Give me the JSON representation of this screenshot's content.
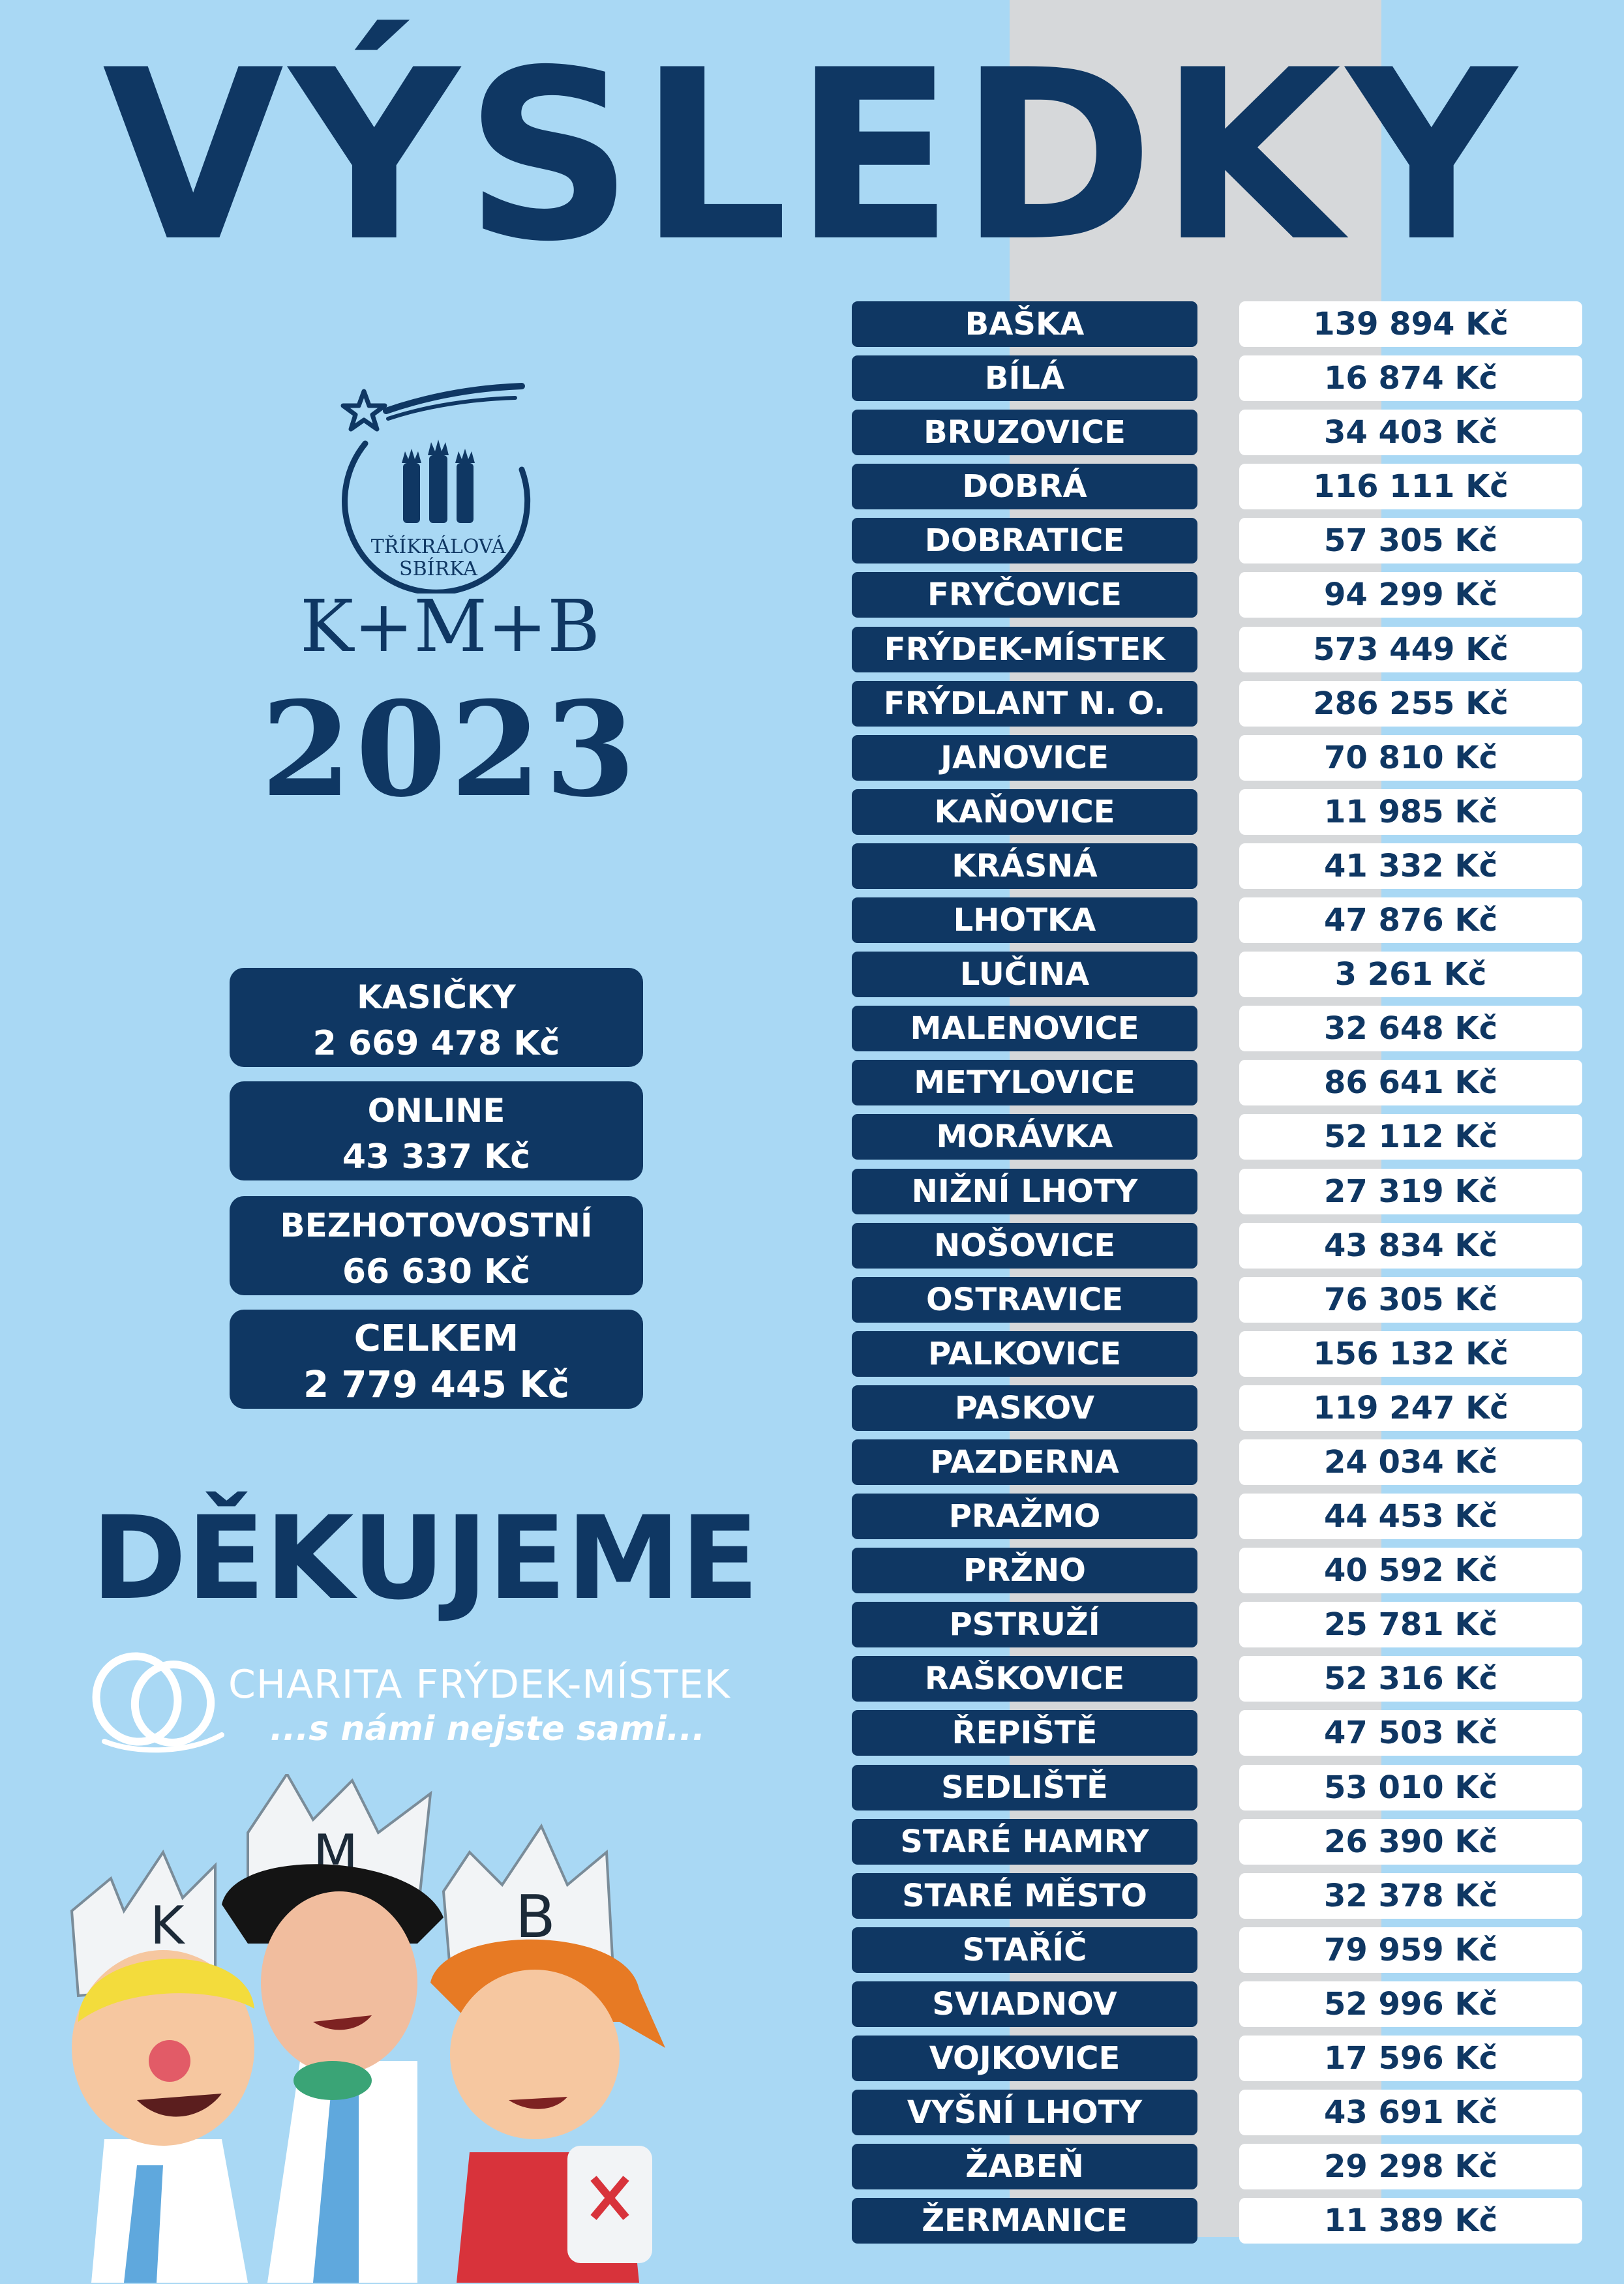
{
  "title": "VÝSLEDKY",
  "logo": {
    "text_line1": "TŘÍKRÁLOVÁ",
    "text_line2": "SBÍRKA",
    "kmb": "K+M+B",
    "year": "2023"
  },
  "summary": [
    {
      "label": "KASIČKY",
      "value": "2 669 478 Kč"
    },
    {
      "label": "ONLINE",
      "value": "43 337 Kč"
    },
    {
      "label": "BEZHOTOVOSTNÍ",
      "value": "66 630 Kč"
    },
    {
      "label": "CELKEM",
      "value": "2 779 445 Kč"
    }
  ],
  "thanks": "DĚKUJEME",
  "charity": {
    "name": "CHARITA FRÝDEK-MÍSTEK",
    "slogan": "...s námi nejste sami..."
  },
  "crown_letters": [
    "K",
    "M",
    "B"
  ],
  "results": [
    {
      "name": "BAŠKA",
      "amount": "139 894 Kč"
    },
    {
      "name": "BÍLÁ",
      "amount": "16 874 Kč"
    },
    {
      "name": "BRUZOVICE",
      "amount": "34 403 Kč"
    },
    {
      "name": "DOBRÁ",
      "amount": "116 111 Kč"
    },
    {
      "name": "DOBRATICE",
      "amount": "57 305 Kč"
    },
    {
      "name": "FRYČOVICE",
      "amount": "94 299 Kč"
    },
    {
      "name": "FRÝDEK-MÍSTEK",
      "amount": "573 449 Kč"
    },
    {
      "name": "FRÝDLANT N. O.",
      "amount": "286 255 Kč"
    },
    {
      "name": "JANOVICE",
      "amount": "70 810 Kč"
    },
    {
      "name": "KAŇOVICE",
      "amount": "11 985 Kč"
    },
    {
      "name": "KRÁSNÁ",
      "amount": "41 332 Kč"
    },
    {
      "name": "LHOTKA",
      "amount": "47 876 Kč"
    },
    {
      "name": "LUČINA",
      "amount": "3 261 Kč"
    },
    {
      "name": "MALENOVICE",
      "amount": "32 648 Kč"
    },
    {
      "name": "METYLOVICE",
      "amount": "86 641 Kč"
    },
    {
      "name": "MORÁVKA",
      "amount": "52 112 Kč"
    },
    {
      "name": "NIŽNÍ LHOTY",
      "amount": "27 319 Kč"
    },
    {
      "name": "NOŠOVICE",
      "amount": "43 834 Kč"
    },
    {
      "name": "OSTRAVICE",
      "amount": "76 305 Kč"
    },
    {
      "name": "PALKOVICE",
      "amount": "156 132 Kč"
    },
    {
      "name": "PASKOV",
      "amount": "119 247 Kč"
    },
    {
      "name": "PAZDERNA",
      "amount": "24 034 Kč"
    },
    {
      "name": "PRAŽMO",
      "amount": "44 453 Kč"
    },
    {
      "name": "PRŽNO",
      "amount": "40 592 Kč"
    },
    {
      "name": "PSTRUŽÍ",
      "amount": "25 781 Kč"
    },
    {
      "name": "RAŠKOVICE",
      "amount": "52 316 Kč"
    },
    {
      "name": "ŘEPIŠTĚ",
      "amount": "47 503 Kč"
    },
    {
      "name": "SEDLIŠTĚ",
      "amount": "53 010 Kč"
    },
    {
      "name": "STARÉ HAMRY",
      "amount": "26 390 Kč"
    },
    {
      "name": "STARÉ MĚSTO",
      "amount": "32 378 Kč"
    },
    {
      "name": "STAŘÍČ",
      "amount": "79 959 Kč"
    },
    {
      "name": "SVIADNOV",
      "amount": "52 996 Kč"
    },
    {
      "name": "VOJKOVICE",
      "amount": "17 596 Kč"
    },
    {
      "name": "VYŠNÍ LHOTY",
      "amount": "43 691 Kč"
    },
    {
      "name": "ŽABEŇ",
      "amount": "29 298 Kč"
    },
    {
      "name": "ŽERMANICE",
      "amount": "11 389 Kč"
    }
  ]
}
